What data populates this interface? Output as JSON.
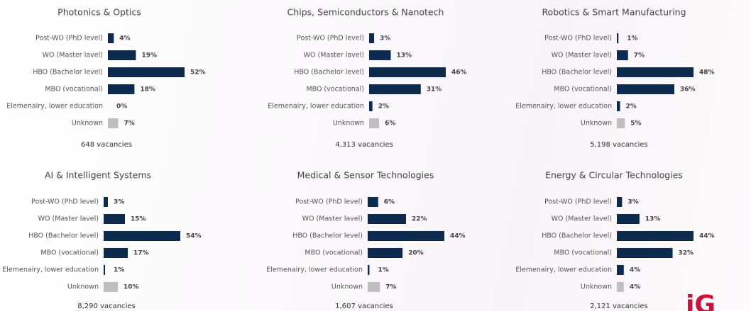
{
  "chart_data": [
    {
      "type": "bar",
      "title": "Photonics & Optics",
      "categories": [
        "Post-WO (PhD level)",
        "WO (Master lavel)",
        "HBO (Bachelor level)",
        "MBO (vocational)",
        "Elemenairy, lower education",
        "Unknown"
      ],
      "values": [
        4,
        19,
        52,
        18,
        0,
        7
      ],
      "value_labels": [
        "4%",
        "19%",
        "52%",
        "18%",
        "0%",
        "7%"
      ],
      "colors": [
        "#0d2a4f",
        "#0d2a4f",
        "#0d2a4f",
        "#0d2a4f",
        "#0d2a4f",
        "#bfbfbf"
      ],
      "footnote": "648 vacancies"
    },
    {
      "type": "bar",
      "title": "Chips, Semiconductors & Nanotech",
      "categories": [
        "Post-WO (PhD level)",
        "WO (Master lavel)",
        "HBO (Bachelor level)",
        "MBO (vocational)",
        "Elemenairy, lower education",
        "Unknown"
      ],
      "values": [
        3,
        13,
        46,
        31,
        2,
        6
      ],
      "value_labels": [
        "3%",
        "13%",
        "46%",
        "31%",
        "2%",
        "6%"
      ],
      "colors": [
        "#0d2a4f",
        "#0d2a4f",
        "#0d2a4f",
        "#0d2a4f",
        "#0d2a4f",
        "#bfbfbf"
      ],
      "footnote": "4,313 vacancies"
    },
    {
      "type": "bar",
      "title": "Robotics & Smart Manufacturing",
      "categories": [
        "Post-WO (PhD level)",
        "WO (Master lavel)",
        "HBO (Bachelor level)",
        "MBO (vocational)",
        "Elemenairy, lower education",
        "Unknown"
      ],
      "values": [
        1,
        7,
        48,
        36,
        2,
        5
      ],
      "value_labels": [
        "1%",
        "7%",
        "48%",
        "36%",
        "2%",
        "5%"
      ],
      "colors": [
        "#0d2a4f",
        "#0d2a4f",
        "#0d2a4f",
        "#0d2a4f",
        "#0d2a4f",
        "#bfbfbf"
      ],
      "footnote": "5,198 vacancies"
    },
    {
      "type": "bar",
      "title": "AI & Intelligent Systems",
      "categories": [
        "Post-WO (PhD level)",
        "WO (Master lavel)",
        "HBO (Bachelor level)",
        "MBO (vocational)",
        "Elemenairy, lower education",
        "Unknown"
      ],
      "values": [
        3,
        15,
        54,
        17,
        1,
        10
      ],
      "value_labels": [
        "3%",
        "15%",
        "54%",
        "17%",
        "1%",
        "10%"
      ],
      "colors": [
        "#0d2a4f",
        "#0d2a4f",
        "#0d2a4f",
        "#0d2a4f",
        "#0d2a4f",
        "#bfbfbf"
      ],
      "footnote": "8,290 vacancies"
    },
    {
      "type": "bar",
      "title": "Medical & Sensor Technologies",
      "categories": [
        "Post-WO (PhD level)",
        "WO (Master lavel)",
        "HBO (Bachelor level)",
        "MBO (vocational)",
        "Elemenairy, lower education",
        "Unknown"
      ],
      "values": [
        6,
        22,
        44,
        20,
        1,
        7
      ],
      "value_labels": [
        "6%",
        "22%",
        "44%",
        "20%",
        "1%",
        "7%"
      ],
      "colors": [
        "#0d2a4f",
        "#0d2a4f",
        "#0d2a4f",
        "#0d2a4f",
        "#0d2a4f",
        "#bfbfbf"
      ],
      "footnote": "1,607 vacancies"
    },
    {
      "type": "bar",
      "title": "Energy & Circular Technologies",
      "categories": [
        "Post-WO (PhD level)",
        "WO (Master lavel)",
        "HBO (Bachelor level)",
        "MBO (vocational)",
        "Elemenairy, lower education",
        "Unknown"
      ],
      "values": [
        3,
        13,
        44,
        32,
        4,
        4
      ],
      "value_labels": [
        "3%",
        "13%",
        "44%",
        "32%",
        "4%",
        "4%"
      ],
      "colors": [
        "#0d2a4f",
        "#0d2a4f",
        "#0d2a4f",
        "#0d2a4f",
        "#0d2a4f",
        "#bfbfbf"
      ],
      "footnote": "2,121 vacancies"
    }
  ],
  "logo": "iG"
}
